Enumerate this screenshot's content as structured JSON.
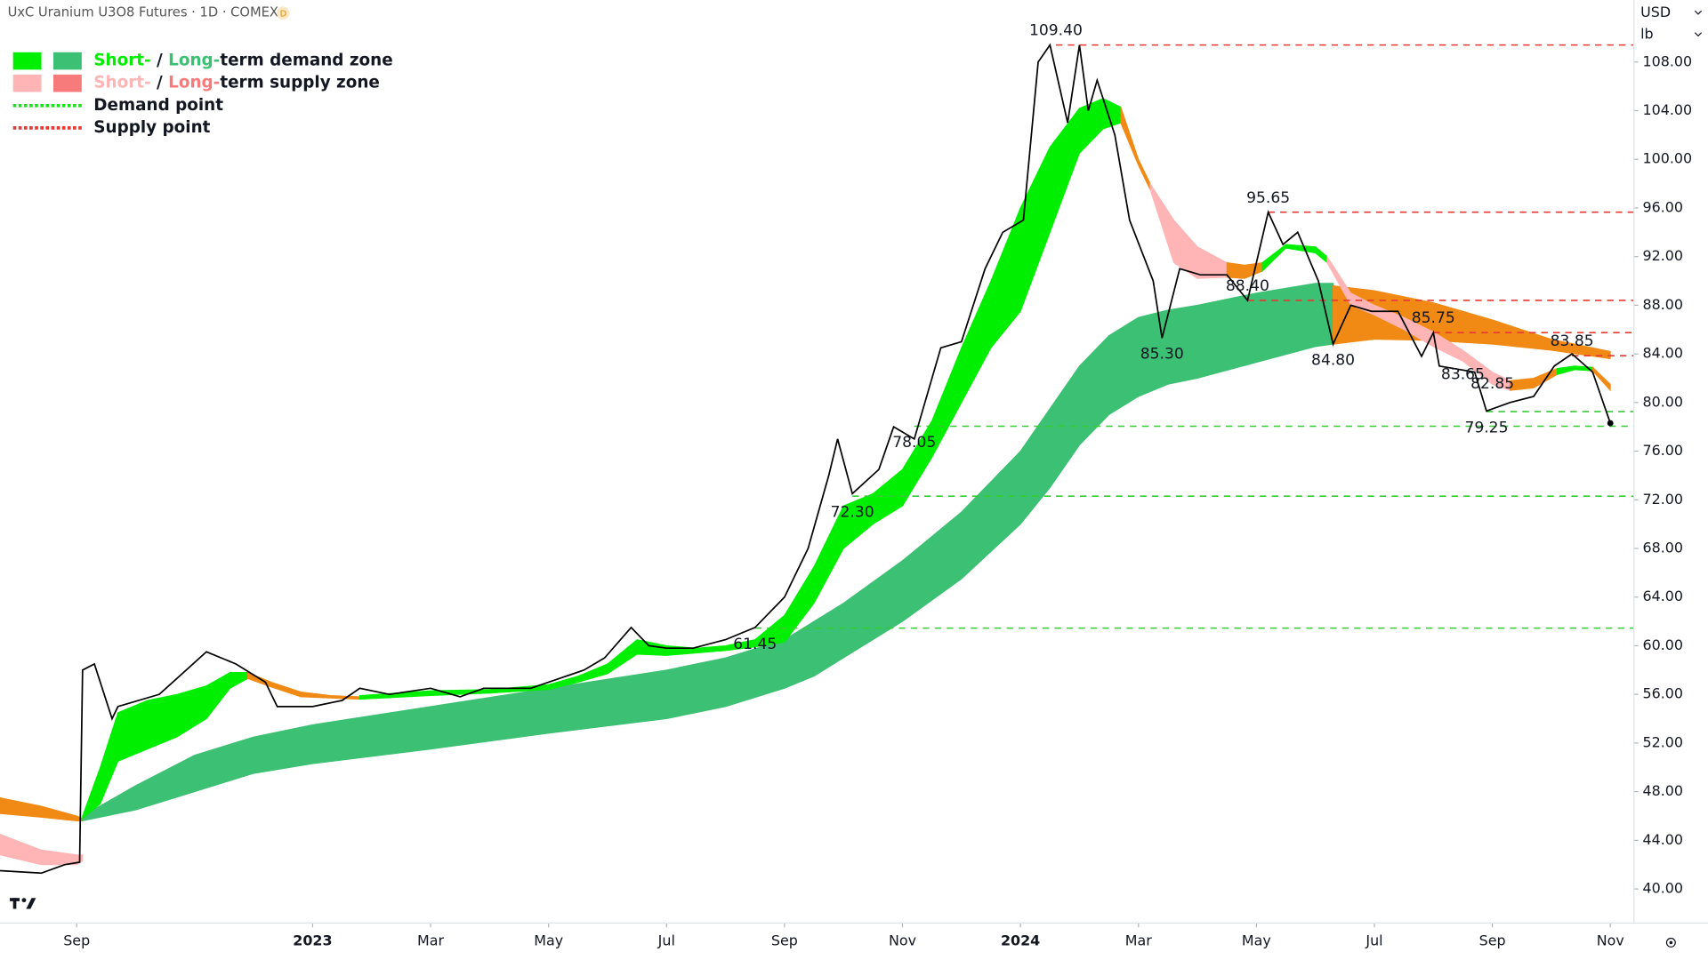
{
  "header": {
    "title": "UxC Uranium U3O8 Futures · 1D · COMEX",
    "badge": "D"
  },
  "chart_data": {
    "type": "line",
    "currency": "USD",
    "unit": "lb",
    "xlim": [
      -1.3,
      26.4
    ],
    "xticks": [
      {
        "value": 0,
        "label": "Sep"
      },
      {
        "value": 4,
        "label": "2023"
      },
      {
        "value": 6,
        "label": "Mar"
      },
      {
        "value": 8,
        "label": "May"
      },
      {
        "value": 10,
        "label": "Jul"
      },
      {
        "value": 12,
        "label": "Sep"
      },
      {
        "value": 14,
        "label": "Nov"
      },
      {
        "value": 16,
        "label": "2024"
      },
      {
        "value": 18,
        "label": "Mar"
      },
      {
        "value": 20,
        "label": "May"
      },
      {
        "value": 22,
        "label": "Jul"
      },
      {
        "value": 24,
        "label": "Sep"
      },
      {
        "value": 26,
        "label": "Nov"
      }
    ],
    "ylim": [
      37.2,
      113.1
    ],
    "yticks": [
      {
        "value": 40,
        "label": "40.00"
      },
      {
        "value": 44,
        "label": "44.00"
      },
      {
        "value": 48,
        "label": "48.00"
      },
      {
        "value": 52,
        "label": "52.00"
      },
      {
        "value": 56,
        "label": "56.00"
      },
      {
        "value": 60,
        "label": "60.00"
      },
      {
        "value": 64,
        "label": "64.00"
      },
      {
        "value": 68,
        "label": "68.00"
      },
      {
        "value": 72,
        "label": "72.00"
      },
      {
        "value": 76,
        "label": "76.00"
      },
      {
        "value": 80,
        "label": "80.00"
      },
      {
        "value": 84,
        "label": "84.00"
      },
      {
        "value": 88,
        "label": "88.00"
      },
      {
        "value": 92,
        "label": "92.00"
      },
      {
        "value": 96,
        "label": "96.00"
      },
      {
        "value": 100,
        "label": "100.00"
      },
      {
        "value": 104,
        "label": "104.00"
      },
      {
        "value": 108,
        "label": "108.00"
      }
    ],
    "price": {
      "color": "#000000",
      "x": [
        -1.3,
        -0.6,
        -0.2,
        0.05,
        0.1,
        0.3,
        0.6,
        0.7,
        1.4,
        2.2,
        2.7,
        3.2,
        3.4,
        4,
        4.5,
        4.8,
        5.3,
        6,
        6.5,
        6.9,
        7.7,
        8,
        8.6,
        8.95,
        9.4,
        9.7,
        10,
        10.45,
        11,
        11.5,
        12,
        12.4,
        12.75,
        12.9,
        13.15,
        13.6,
        13.85,
        14.2,
        14.65,
        15,
        15.4,
        15.7,
        16.05,
        16.3,
        16.5,
        16.8,
        17,
        17.15,
        17.3,
        17.6,
        17.85,
        18.25,
        18.4,
        18.7,
        19.05,
        19.5,
        19.85,
        20.2,
        20.45,
        20.7,
        21.05,
        21.3,
        21.6,
        21.95,
        22.4,
        22.8,
        23,
        23.1,
        23.7,
        23.9,
        24.3,
        24.7,
        25.05,
        25.35,
        25.7,
        26
      ],
      "values": [
        41.5,
        41.3,
        42,
        42.2,
        58,
        58.5,
        54,
        55,
        56,
        59.5,
        58.5,
        57,
        55,
        55,
        55.5,
        56.5,
        56,
        56.5,
        55.8,
        56.5,
        56.5,
        57,
        58,
        59,
        61.5,
        60,
        59.8,
        59.8,
        60.5,
        61.5,
        64,
        68,
        74,
        77,
        72.5,
        74.5,
        78,
        77,
        84.5,
        85,
        91,
        94,
        95,
        108,
        109.4,
        103,
        109.4,
        104,
        106.5,
        102,
        95,
        90,
        85.3,
        91,
        90.5,
        90.5,
        88.4,
        95.65,
        93,
        94,
        90,
        84.8,
        88,
        87.5,
        87.5,
        83.8,
        85.75,
        83,
        82.5,
        79.3,
        80,
        80.5,
        83,
        84,
        82.5,
        78.3
      ]
    },
    "zones": [
      {
        "color": "#f08a14",
        "x": [
          -1.3,
          -0.6,
          0,
          0.1
        ],
        "upper": [
          47.5,
          46.8,
          46,
          45.8
        ],
        "lower": [
          46.2,
          45.9,
          45.6,
          45.6
        ]
      },
      {
        "color": "#ffb5b5",
        "x": [
          -1.3,
          -0.6,
          0,
          0.1
        ],
        "upper": [
          44.5,
          43.2,
          42.8,
          42.8
        ],
        "lower": [
          42.8,
          42,
          42,
          42.3
        ]
      },
      {
        "color": "#3cc073",
        "x": [
          0.1,
          1,
          2,
          3,
          4,
          6,
          8,
          10,
          11,
          12,
          12.5,
          13,
          14,
          15,
          16,
          16.5,
          17,
          17.5,
          18,
          18.5,
          19,
          20,
          21,
          21.3
        ],
        "upper": [
          46,
          48.5,
          51,
          52.5,
          53.5,
          55,
          56.5,
          58,
          59,
          60.5,
          62,
          63.5,
          67,
          71,
          76,
          79.5,
          83,
          85.5,
          87,
          87.6,
          88,
          89,
          89.8,
          89.8
        ],
        "lower": [
          45.6,
          46.5,
          48,
          49.5,
          50.3,
          51.5,
          52.8,
          54,
          55,
          56.5,
          57.5,
          59,
          62,
          65.5,
          70,
          73,
          76.5,
          79,
          80.5,
          81.5,
          82,
          83.3,
          84.6,
          84.8
        ]
      },
      {
        "color": "#f08a14",
        "x": [
          21.3,
          22,
          23,
          24,
          25,
          26
        ],
        "upper": [
          89.6,
          89.2,
          88.2,
          86.8,
          85.2,
          84.2
        ],
        "lower": [
          84.8,
          85.2,
          85.1,
          84.8,
          84.3,
          83.6
        ]
      },
      {
        "color": "#00ee00",
        "x": [
          0.1,
          0.4,
          0.7,
          1.2,
          1.7,
          2.2,
          2.6,
          2.9
        ],
        "upper": [
          46,
          50,
          54.5,
          55.5,
          56,
          56.7,
          57.8,
          57.8
        ],
        "lower": [
          45.8,
          47,
          50.5,
          51.5,
          52.5,
          54,
          56.5,
          57.3
        ]
      },
      {
        "color": "#f08a14",
        "x": [
          2.9,
          3.3,
          3.8,
          4.3,
          4.8
        ],
        "upper": [
          57.8,
          57,
          56.2,
          55.9,
          55.8
        ],
        "lower": [
          57.3,
          56.6,
          55.8,
          55.7,
          55.6
        ]
      },
      {
        "color": "#00ee00",
        "x": [
          4.8,
          6,
          7,
          8,
          8.5,
          9,
          9.5,
          10,
          10.5,
          11,
          11.5,
          12,
          12.5,
          13,
          13.5,
          14,
          14.5,
          15,
          15.5,
          16,
          16.5,
          17,
          17.4,
          17.7
        ],
        "upper": [
          55.9,
          56.3,
          56.4,
          56.8,
          57.5,
          58.5,
          60.5,
          60,
          59.8,
          60,
          60.5,
          62.5,
          66.5,
          71.5,
          72.5,
          74.5,
          78.5,
          84.5,
          90,
          96,
          101,
          104.2,
          105,
          104.3
        ],
        "lower": [
          55.6,
          55.9,
          56.1,
          56.4,
          57,
          57.7,
          59.3,
          59.2,
          59.4,
          59.6,
          59.9,
          60.3,
          63.5,
          68,
          70,
          71.5,
          75.5,
          80,
          84.5,
          87.5,
          94,
          100.5,
          102.5,
          103
        ]
      },
      {
        "color": "#f08a14",
        "x": [
          17.7,
          18,
          18.2
        ],
        "upper": [
          104.3,
          100,
          98
        ],
        "lower": [
          103,
          99.5,
          97.5
        ]
      },
      {
        "color": "#ffb5b5",
        "x": [
          18.2,
          18.6,
          19,
          19.5
        ],
        "upper": [
          98,
          95,
          92.8,
          91.5
        ],
        "lower": [
          97.5,
          91.5,
          90.2,
          90.3
        ]
      },
      {
        "color": "#f08a14",
        "x": [
          19.5,
          19.8,
          20.1
        ],
        "upper": [
          91.5,
          91.3,
          91.5
        ],
        "lower": [
          90.3,
          90.2,
          90.8
        ]
      },
      {
        "color": "#00ee00",
        "x": [
          20.1,
          20.5,
          21,
          21.2
        ],
        "upper": [
          91.5,
          93,
          92.8,
          92
        ],
        "lower": [
          90.8,
          92.7,
          92.3,
          91.5
        ]
      },
      {
        "color": "#ffb5b5",
        "x": [
          21.2,
          21.6,
          22,
          22.5,
          23,
          23.5,
          24,
          24.3
        ],
        "upper": [
          92,
          89,
          88,
          87,
          85.8,
          84.3,
          82.5,
          81.8
        ],
        "lower": [
          91.5,
          88,
          87.2,
          86,
          84.6,
          83.4,
          81.5,
          81
        ]
      },
      {
        "color": "#f08a14",
        "x": [
          24.3,
          24.7,
          25.1
        ],
        "upper": [
          81.8,
          82,
          82.8
        ],
        "lower": [
          81,
          81.2,
          82.3
        ]
      },
      {
        "color": "#00ee00",
        "x": [
          25.1,
          25.4,
          25.7
        ],
        "upper": [
          82.8,
          83,
          82.9
        ],
        "lower": [
          82.3,
          82.7,
          82.6
        ]
      },
      {
        "color": "#f08a14",
        "x": [
          25.7,
          26
        ],
        "upper": [
          82.9,
          81.5
        ],
        "lower": [
          82.6,
          81
        ]
      }
    ],
    "levels": [
      {
        "value": 109.4,
        "label": "109.40",
        "x": 16.6,
        "color": "#e53935"
      },
      {
        "value": 95.65,
        "label": "95.65",
        "x": 20.2,
        "color": "#e53935"
      },
      {
        "value": 88.4,
        "label": "88.40",
        "x": 19.85,
        "color": "#e53935"
      },
      {
        "value": 85.75,
        "label": "85.75",
        "x": 23,
        "color": "#e53935"
      },
      {
        "value": 83.85,
        "label": "83.85",
        "x": 25.35,
        "color": "#e53935"
      },
      {
        "value": 85.3,
        "label": "85.30",
        "x": 18.4
      },
      {
        "value": 84.8,
        "label": "84.80",
        "x": 21.3
      },
      {
        "value": 83.65,
        "label": "83.65",
        "x": 23.5
      },
      {
        "value": 82.85,
        "label": "82.85",
        "x": 24.0
      },
      {
        "value": 79.25,
        "label": "79.25",
        "x": 23.9,
        "color": "#33cc33"
      },
      {
        "value": 78.05,
        "label": "78.05",
        "x": 14.2,
        "color": "#33cc33"
      },
      {
        "value": 72.3,
        "label": "72.30",
        "x": 13.15,
        "color": "#33cc33"
      },
      {
        "value": 61.45,
        "label": "61.45",
        "x": 11.5,
        "color": "#33cc33"
      }
    ],
    "legend": [
      {
        "short": "Short-",
        "sep": " / ",
        "long": "Long-",
        "text": "term demand zone",
        "colors": [
          "#00ee00",
          "#3cc073"
        ]
      },
      {
        "short": "Short-",
        "sep": " / ",
        "long": "Long-",
        "text": "term supply zone",
        "colors": [
          "#ffb5b5",
          "#f77b7b"
        ]
      },
      {
        "text": "Demand point",
        "color": "#22dd22"
      },
      {
        "text": "Supply point",
        "color": "#e53935"
      }
    ]
  }
}
